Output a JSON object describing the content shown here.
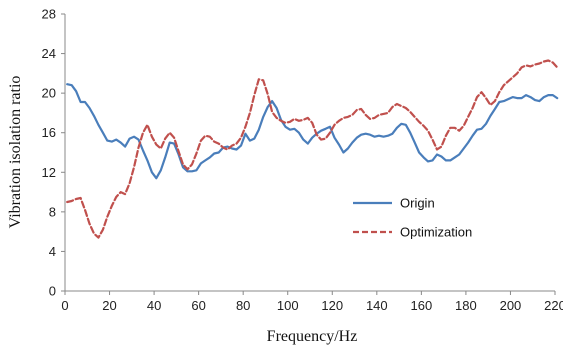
{
  "chart_data": {
    "type": "line",
    "title": "",
    "xlabel": "Frequency/Hz",
    "ylabel": "Vibration isolation ratio",
    "xlim": [
      0,
      220
    ],
    "ylim": [
      0,
      28
    ],
    "xticks": [
      0,
      20,
      40,
      60,
      80,
      100,
      120,
      140,
      160,
      180,
      200,
      220
    ],
    "yticks": [
      0,
      4,
      8,
      12,
      16,
      20,
      24,
      28
    ],
    "grid": false,
    "legend_position": "center-right",
    "series": [
      {
        "name": "Origin",
        "color": "#4a7ebb",
        "style": "solid",
        "x": [
          1,
          3,
          5,
          7,
          9,
          11,
          13,
          15,
          17,
          19,
          21,
          23,
          25,
          27,
          29,
          31,
          33,
          35,
          37,
          39,
          41,
          43,
          45,
          47,
          49,
          51,
          53,
          55,
          57,
          59,
          61,
          63,
          65,
          67,
          69,
          71,
          73,
          75,
          77,
          79,
          81,
          83,
          85,
          87,
          89,
          91,
          93,
          95,
          97,
          99,
          101,
          103,
          105,
          107,
          109,
          111,
          113,
          115,
          117,
          119,
          121,
          123,
          125,
          127,
          129,
          131,
          133,
          135,
          137,
          139,
          141,
          143,
          145,
          147,
          149,
          151,
          153,
          155,
          157,
          159,
          161,
          163,
          165,
          167,
          169,
          171,
          173,
          175,
          177,
          179,
          181,
          183,
          185,
          187,
          189,
          191,
          193,
          195,
          197,
          199,
          201,
          203,
          205,
          207,
          209,
          211,
          213,
          215,
          217,
          219,
          221
        ],
        "values": [
          20.9,
          20.8,
          20.2,
          19.1,
          19.1,
          18.5,
          17.7,
          16.8,
          16.0,
          15.2,
          15.1,
          15.3,
          15.0,
          14.6,
          15.4,
          15.6,
          15.3,
          14.2,
          13.2,
          12.0,
          11.4,
          12.2,
          13.5,
          15.0,
          14.9,
          13.8,
          12.5,
          12.1,
          12.1,
          12.2,
          12.9,
          13.2,
          13.5,
          13.9,
          14.0,
          14.5,
          14.6,
          14.4,
          14.3,
          14.7,
          15.9,
          15.2,
          15.4,
          16.3,
          17.6,
          18.6,
          19.2,
          18.5,
          17.3,
          16.6,
          16.3,
          16.4,
          16.0,
          15.3,
          14.9,
          15.5,
          15.9,
          16.2,
          16.4,
          16.6,
          15.5,
          14.8,
          14.0,
          14.4,
          15.0,
          15.5,
          15.8,
          15.9,
          15.8,
          15.6,
          15.7,
          15.6,
          15.7,
          15.9,
          16.5,
          16.9,
          16.8,
          16.0,
          15.0,
          14.0,
          13.5,
          13.1,
          13.2,
          13.8,
          13.6,
          13.2,
          13.2,
          13.5,
          13.8,
          14.4,
          15.0,
          15.7,
          16.3,
          16.4,
          16.9,
          17.7,
          18.4,
          19.1,
          19.2,
          19.4,
          19.6,
          19.5,
          19.5,
          19.8,
          19.6,
          19.3,
          19.2,
          19.6,
          19.8,
          19.8,
          19.5
        ]
      },
      {
        "name": "Optimization",
        "color": "#c0504d",
        "style": "dashed",
        "x": [
          1,
          3,
          5,
          7,
          9,
          11,
          13,
          15,
          17,
          19,
          21,
          23,
          25,
          27,
          29,
          31,
          33,
          35,
          37,
          39,
          41,
          43,
          45,
          47,
          49,
          51,
          53,
          55,
          57,
          59,
          61,
          63,
          65,
          67,
          69,
          71,
          73,
          75,
          77,
          79,
          81,
          83,
          85,
          87,
          89,
          91,
          93,
          95,
          97,
          99,
          101,
          103,
          105,
          107,
          109,
          111,
          113,
          115,
          117,
          119,
          121,
          123,
          125,
          127,
          129,
          131,
          133,
          135,
          137,
          139,
          141,
          143,
          145,
          147,
          149,
          151,
          153,
          155,
          157,
          159,
          161,
          163,
          165,
          167,
          169,
          171,
          173,
          175,
          177,
          179,
          181,
          183,
          185,
          187,
          189,
          191,
          193,
          195,
          197,
          199,
          201,
          203,
          205,
          207,
          209,
          211,
          213,
          215,
          217,
          219,
          221
        ],
        "values": [
          9.0,
          9.1,
          9.3,
          9.4,
          8.2,
          6.8,
          5.8,
          5.4,
          6.2,
          7.5,
          8.6,
          9.5,
          10.0,
          9.8,
          10.9,
          12.5,
          14.5,
          16.0,
          16.8,
          15.6,
          14.8,
          14.4,
          15.4,
          16.0,
          15.5,
          14.1,
          12.8,
          12.3,
          12.8,
          13.9,
          15.2,
          15.7,
          15.6,
          15.1,
          14.9,
          14.5,
          14.3,
          14.7,
          14.9,
          15.5,
          16.6,
          18.0,
          19.8,
          21.4,
          21.3,
          19.9,
          18.1,
          17.5,
          17.2,
          17.0,
          17.1,
          17.4,
          17.2,
          17.3,
          17.5,
          17.0,
          15.8,
          15.3,
          15.4,
          16.0,
          16.8,
          17.2,
          17.5,
          17.6,
          17.8,
          18.3,
          18.4,
          17.8,
          17.4,
          17.5,
          17.8,
          17.9,
          18.0,
          18.6,
          18.9,
          18.7,
          18.5,
          18.1,
          17.6,
          17.1,
          16.7,
          16.2,
          15.3,
          14.3,
          14.6,
          15.7,
          16.5,
          16.5,
          16.2,
          16.7,
          17.6,
          18.5,
          19.6,
          20.1,
          19.5,
          18.8,
          19.2,
          20.1,
          20.8,
          21.2,
          21.6,
          22.0,
          22.6,
          22.8,
          22.7,
          22.9,
          23.0,
          23.2,
          23.3,
          23.1,
          22.6
        ]
      }
    ]
  }
}
